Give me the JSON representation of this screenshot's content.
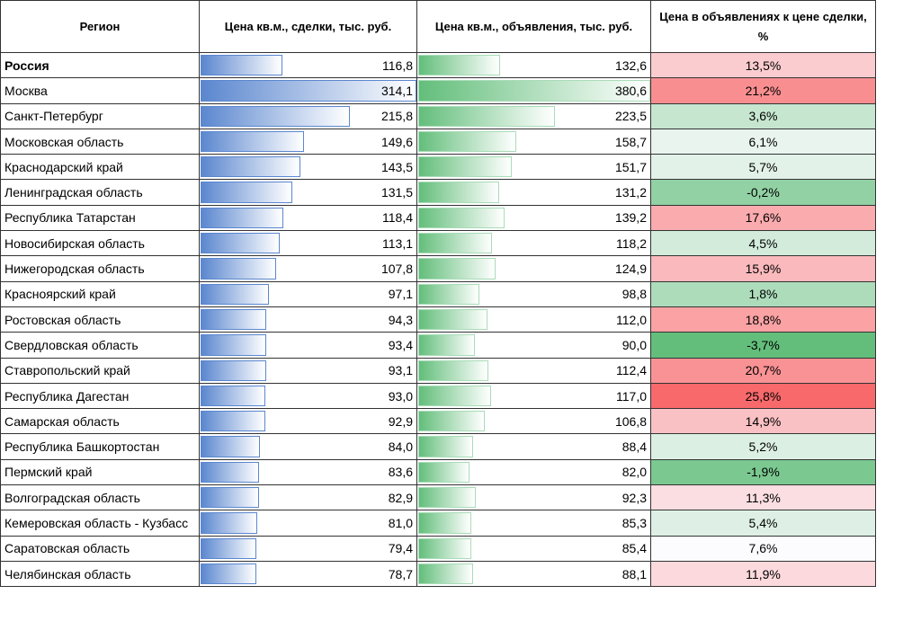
{
  "table": {
    "header": [
      "Регион",
      "Цена кв.м., сделки, тыс. руб.",
      "Цена кв.м., объявления, тыс. руб.",
      "Цена в объявлениях к цене сделки, %"
    ],
    "rows": [
      [
        "Россия",
        "116,8",
        "132,6",
        "13,5%"
      ],
      [
        "Москва",
        "314,1",
        "380,6",
        "21,2%"
      ],
      [
        "Санкт-Петербург",
        "215,8",
        "223,5",
        "3,6%"
      ],
      [
        "Московская область",
        "149,6",
        "158,7",
        "6,1%"
      ],
      [
        "Краснодарский край",
        "143,5",
        "151,7",
        "5,7%"
      ],
      [
        "Ленинградская область",
        "131,5",
        "131,2",
        "-0,2%"
      ],
      [
        "Республика Татарстан",
        "118,4",
        "139,2",
        "17,6%"
      ],
      [
        "Новосибирская область",
        "113,1",
        "118,2",
        "4,5%"
      ],
      [
        "Нижегородская область",
        "107,8",
        "124,9",
        "15,9%"
      ],
      [
        "Красноярский край",
        "97,1",
        "98,8",
        "1,8%"
      ],
      [
        "Ростовская область",
        "94,3",
        "112,0",
        "18,8%"
      ],
      [
        "Свердловская область",
        "93,4",
        "90,0",
        "-3,7%"
      ],
      [
        "Ставропольский край",
        "93,1",
        "112,4",
        "20,7%"
      ],
      [
        "Республика Дагестан",
        "93,0",
        "117,0",
        "25,8%"
      ],
      [
        "Самарская область",
        "92,9",
        "106,8",
        "14,9%"
      ],
      [
        "Республика Башкортостан",
        "84,0",
        "88,4",
        "5,2%"
      ],
      [
        "Пермский край",
        "83,6",
        "82,0",
        "-1,9%"
      ],
      [
        "Волгоградская область",
        "82,9",
        "92,3",
        "11,3%"
      ],
      [
        "Кемеровская область - Кузбасс",
        "81,0",
        "85,3",
        "5,4%"
      ],
      [
        "Саратовская область",
        "79,4",
        "85,4",
        "7,6%"
      ],
      [
        "Челябинская область",
        "78,7",
        "88,1",
        "11,9%"
      ]
    ]
  }
}
